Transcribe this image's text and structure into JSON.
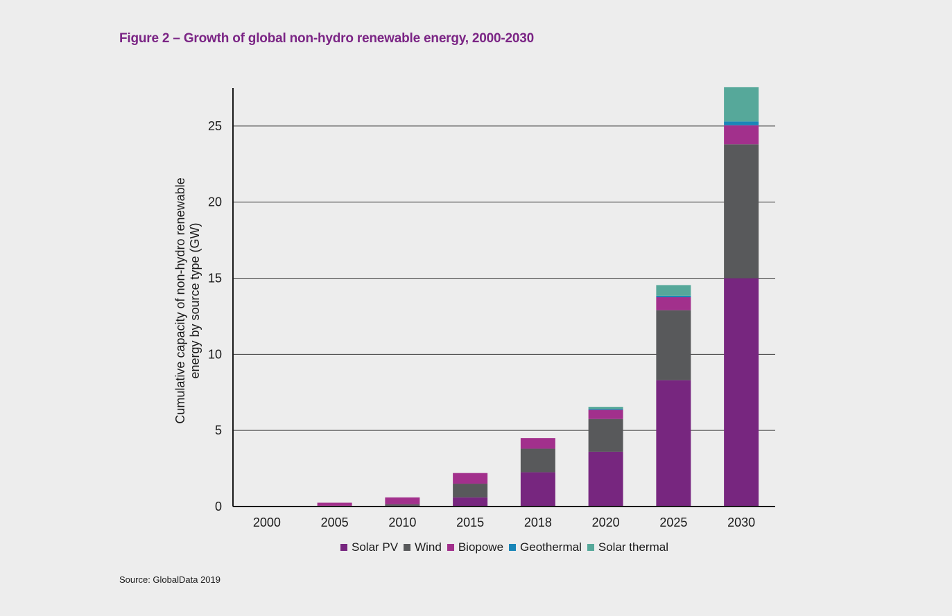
{
  "figure": {
    "title": "Figure 2 – Growth of global non-hydro renewable energy, 2000-2030",
    "source": "Source: GlobalData 2019"
  },
  "chart_data": {
    "type": "bar",
    "stacked": true,
    "categories": [
      "2000",
      "2005",
      "2010",
      "2015",
      "2018",
      "2020",
      "2025",
      "2030"
    ],
    "series": [
      {
        "name": "Solar PV",
        "color": "#77267f",
        "values": [
          0.0,
          0.0,
          0.05,
          0.6,
          2.25,
          3.6,
          8.3,
          15.0
        ]
      },
      {
        "name": "Wind",
        "color": "#58595b",
        "values": [
          0.0,
          0.05,
          0.1,
          0.9,
          1.55,
          2.15,
          4.6,
          8.8
        ]
      },
      {
        "name": "Biopowe",
        "color": "#a2308c",
        "values": [
          0.0,
          0.2,
          0.45,
          0.7,
          0.7,
          0.6,
          0.85,
          1.25
        ]
      },
      {
        "name": "Geothermal",
        "color": "#1a86b8",
        "values": [
          0.0,
          0.0,
          0.0,
          0.0,
          0.0,
          0.05,
          0.1,
          0.25
        ]
      },
      {
        "name": "Solar thermal",
        "color": "#56a89a",
        "values": [
          0.0,
          0.0,
          0.0,
          0.0,
          0.0,
          0.15,
          0.7,
          2.25
        ]
      }
    ],
    "ylabel": "Cumulative capacity of non-hydro renewable energy by source type (GW)",
    "ylabel_lines": [
      "Cumulative capacity of non-hydro renewable",
      "energy by source type (GW)"
    ],
    "yticks": [
      "0",
      "5",
      "10",
      "15",
      "20",
      "25"
    ],
    "ylim": [
      0,
      27.5
    ],
    "grid": true,
    "legend": "bottom"
  }
}
